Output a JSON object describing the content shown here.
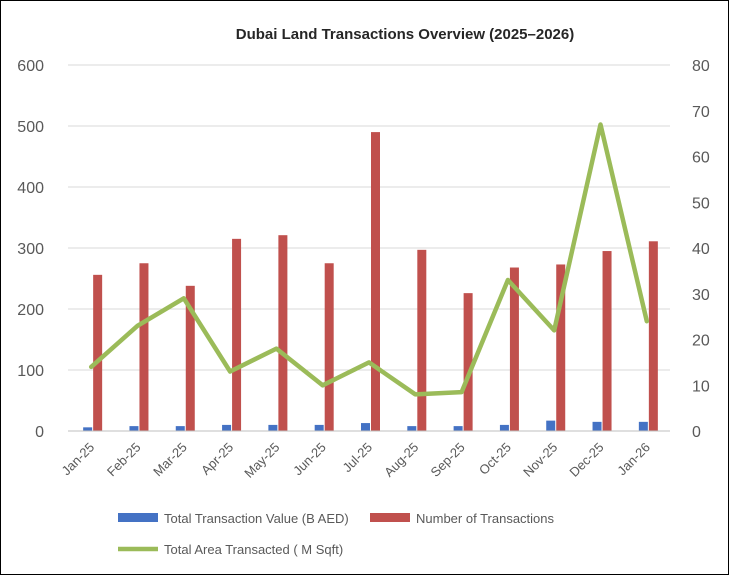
{
  "chart_data": {
    "type": "bar",
    "title": "Dubai Land Transactions Overview (2025–2026)",
    "categories": [
      "Jan-25",
      "Feb-25",
      "Mar-25",
      "Apr-25",
      "May-25",
      "Jun-25",
      "Jul-25",
      "Aug-25",
      "Sep-25",
      "Oct-25",
      "Nov-25",
      "Dec-25",
      "Jan-26"
    ],
    "series": [
      {
        "name": "Total Transaction Value (B AED)",
        "type": "bar",
        "axis": "left",
        "color": "#4472C4",
        "values": [
          6,
          8,
          8,
          10,
          10,
          10,
          13,
          8,
          8,
          10,
          17,
          15,
          15
        ]
      },
      {
        "name": "Number of Transactions",
        "type": "bar",
        "axis": "left",
        "color": "#C0504D",
        "values": [
          256,
          275,
          238,
          315,
          321,
          275,
          490,
          297,
          226,
          268,
          273,
          295,
          311
        ]
      },
      {
        "name": "Total Area Transacted ( M Sqft)",
        "type": "line",
        "axis": "right",
        "color": "#9BBB59",
        "values": [
          14,
          23,
          29,
          13,
          18,
          10,
          15,
          8,
          8.5,
          33,
          22,
          67,
          24
        ]
      }
    ],
    "y_left": {
      "min": 0,
      "max": 600,
      "ticks": [
        "0",
        "100",
        "200",
        "300",
        "400",
        "500",
        "600"
      ]
    },
    "y_right": {
      "min": 0,
      "max": 80,
      "ticks": [
        "0",
        "10",
        "20",
        "30",
        "40",
        "50",
        "60",
        "70",
        "80"
      ]
    },
    "grid": true,
    "legend_position": "bottom"
  }
}
